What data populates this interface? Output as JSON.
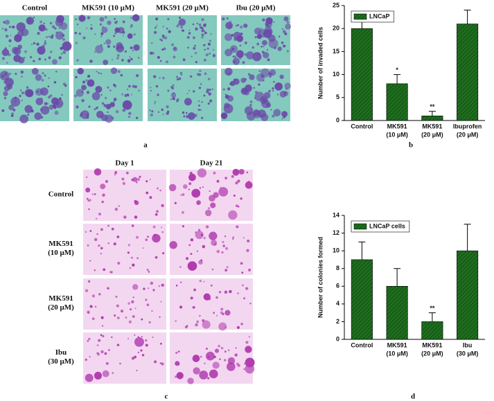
{
  "figure": {
    "panels": [
      "a",
      "b",
      "c",
      "d"
    ],
    "invasion_columns": [
      "Control",
      "MK591 (10 μM)",
      "MK591 (20 μM)",
      "Ibu (20 μM)"
    ],
    "colony_columns": [
      "Day 1",
      "Day 21"
    ],
    "colony_rows": [
      [
        "Control"
      ],
      [
        "MK591",
        "(10 μM)"
      ],
      [
        "MK591",
        "(20 μM)"
      ],
      [
        "Ibu",
        "(30 μM)"
      ]
    ]
  },
  "chart_data": [
    {
      "type": "bar",
      "y_label": "Number of invaded cells",
      "categories": [
        [
          "Control"
        ],
        [
          "MK591",
          "(10 μM)"
        ],
        [
          "MK591",
          "(20 μM)"
        ],
        [
          "Ibuprofen",
          "(20 μM)"
        ]
      ],
      "series": [
        {
          "name": "LNCaP",
          "color": "#1f6e1f",
          "values": [
            20,
            8,
            1,
            21
          ],
          "errors": [
            3,
            2,
            1,
            3
          ],
          "significance": [
            null,
            "*",
            "**",
            null
          ]
        }
      ],
      "ylim": [
        0,
        25
      ],
      "yticks": [
        0,
        5,
        10,
        15,
        20,
        25
      ],
      "legend": "upper left",
      "hatch": true
    },
    {
      "type": "bar",
      "y_label": "Number of colonies formed",
      "categories": [
        [
          "Control"
        ],
        [
          "MK591",
          "(10 μM)"
        ],
        [
          "MK591",
          "(20 μM)"
        ],
        [
          "Ibu",
          "(30 μM)"
        ]
      ],
      "series": [
        {
          "name": "LNCaP cells",
          "color": "#1f6e1f",
          "values": [
            9,
            6,
            2,
            10
          ],
          "errors": [
            2,
            2,
            1,
            3
          ],
          "significance": [
            null,
            null,
            "**",
            null
          ]
        }
      ],
      "ylim": [
        0,
        14
      ],
      "yticks": [
        0,
        2,
        4,
        6,
        8,
        10,
        12,
        14
      ],
      "legend": "upper left",
      "hatch": true
    }
  ]
}
